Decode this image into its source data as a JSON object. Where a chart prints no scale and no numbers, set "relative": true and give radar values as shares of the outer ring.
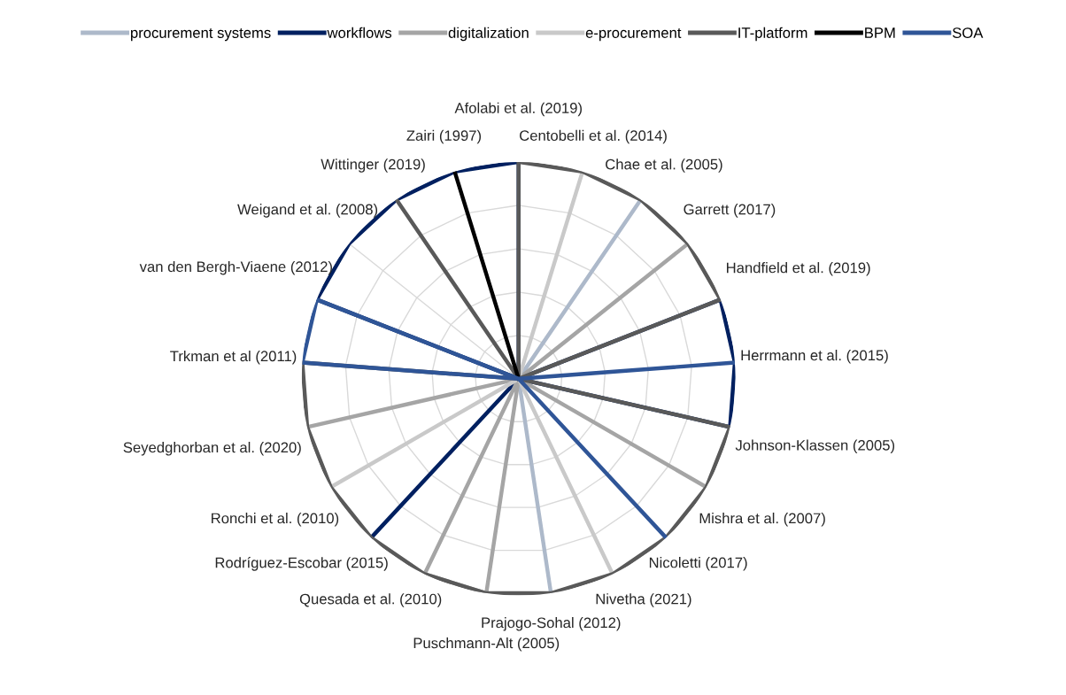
{
  "chart_data": {
    "type": "radar",
    "relative": true,
    "grid": true,
    "legend": "top",
    "line_style": "solid",
    "marker": "none",
    "categories": [
      "Afolabi et al. (2019)",
      "Centobelli et al. (2014)",
      "Chae et al. (2005)",
      "Garrett (2017)",
      "Handfield et al. (2019)",
      "Herrmann et al. (2015)",
      "Johnson-Klassen (2005)",
      "Mishra et al. (2007)",
      "Nicoletti (2017)",
      "Nivetha (2021)",
      "Prajogo-Sohal (2012)",
      "Puschmann-Alt (2005)",
      "Quesada et al. (2010)",
      "Rodríguez-Escobar (2015)",
      "Ronchi et al. (2010)",
      "Seyedghorban et al. (2020)",
      "Trkman et al (2011)",
      "van den Bergh-Viaene (2012)",
      "Weigand et al. (2008)",
      "Wittinger (2019)",
      "Zairi (1997)"
    ],
    "series": [
      {
        "name": "procurement systems",
        "color": "#adb9ca",
        "values": [
          0,
          0,
          1,
          0,
          0,
          0,
          0,
          0,
          0,
          0,
          1,
          0,
          0,
          0,
          0,
          0,
          0,
          0,
          0,
          0,
          0
        ]
      },
      {
        "name": "workflows",
        "color": "#002060",
        "values": [
          1,
          0,
          0,
          0,
          1,
          1,
          1,
          0,
          0,
          0,
          0,
          0,
          0,
          1,
          0,
          0,
          0,
          1,
          1,
          1,
          1
        ]
      },
      {
        "name": "digitalization",
        "color": "#a5a5a5",
        "values": [
          0,
          0,
          0,
          1,
          0,
          0,
          0,
          1,
          0,
          0,
          0,
          1,
          1,
          0,
          0,
          1,
          0,
          0,
          0,
          0,
          0
        ]
      },
      {
        "name": "e-procurement",
        "color": "#c9c9c9",
        "values": [
          0,
          1,
          0,
          0,
          0,
          0,
          0,
          0,
          0,
          1,
          0,
          0,
          0,
          0,
          1,
          0,
          0,
          0,
          0,
          0,
          0
        ]
      },
      {
        "name": "IT-platform",
        "color": "#595959",
        "values": [
          1,
          1,
          1,
          1,
          1,
          0,
          1,
          1,
          1,
          1,
          1,
          1,
          1,
          1,
          1,
          1,
          1,
          0,
          0,
          1,
          0
        ]
      },
      {
        "name": "BPM",
        "color": "#000000",
        "values": [
          0,
          0,
          0,
          0,
          0,
          0,
          0,
          0,
          0,
          0,
          0,
          0,
          0,
          0,
          0,
          0,
          0,
          0,
          0,
          0,
          1
        ]
      },
      {
        "name": "SOA",
        "color": "#2f5597",
        "values": [
          0,
          0,
          0,
          0,
          0,
          1,
          0,
          0,
          1,
          0,
          0,
          0,
          0,
          0,
          0,
          0,
          1,
          1,
          0,
          0,
          0
        ]
      }
    ]
  }
}
